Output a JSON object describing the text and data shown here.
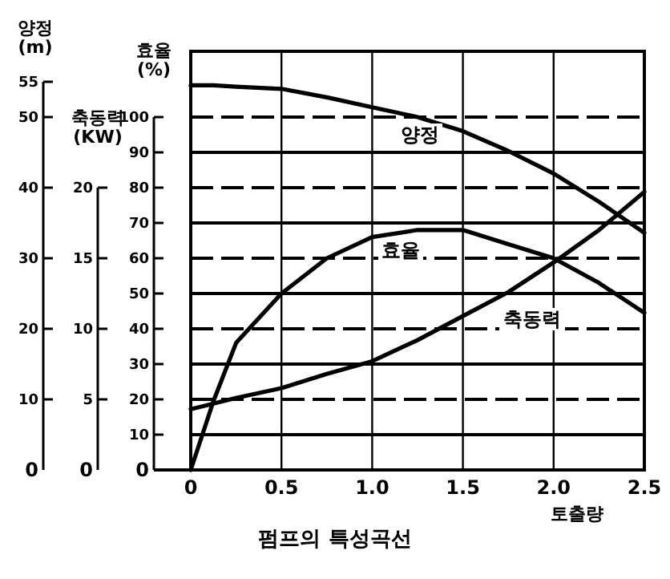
{
  "chart_data": {
    "type": "line",
    "title": "펌프의 특성곡선",
    "xlabel": "토출량",
    "ylabel": "효율\n(%)",
    "y2label": "축동력\n(KW)",
    "y3label": "양정\n(m)",
    "x": [
      0,
      0.125,
      0.25,
      0.5,
      0.75,
      1.0,
      1.25,
      1.5,
      1.75,
      2.0,
      2.25,
      2.5
    ],
    "series": [
      {
        "name": "양정",
        "color": "#000000",
        "axis": "y3",
        "values": [
          54.5,
          54.5,
          54.3,
          54,
          52.8,
          51.4,
          50,
          48,
          45.2,
          42,
          38,
          33.6
        ]
      },
      {
        "name": "효율",
        "color": "#000000",
        "values": [
          0,
          19.5,
          36,
          50,
          60,
          66,
          68,
          68,
          64,
          60,
          53,
          44.5
        ]
      },
      {
        "name": "축동력",
        "color": "#000000",
        "axis": "y2",
        "values": [
          4.3,
          4.7,
          5.1,
          5.8,
          6.8,
          7.7,
          9.2,
          10.9,
          12.6,
          14.7,
          17,
          19.7
        ]
      }
    ],
    "xlim": [
      0,
      2.5
    ],
    "xticks": [
      0,
      0.5,
      {
        "value": 1,
        "label": "1.0"
      },
      1.5,
      {
        "value": 2,
        "label": "2.0"
      },
      2.5
    ],
    "ylim": [
      0,
      100
    ],
    "yticks": [
      0,
      10,
      20,
      30,
      40,
      50,
      60,
      70,
      80,
      90,
      100
    ],
    "y2lim": [
      0,
      20
    ],
    "y2ticks": [
      0,
      5,
      10,
      15,
      20
    ],
    "y3lim": [
      0,
      55
    ],
    "y3ticks": [
      0,
      10,
      20,
      30,
      40,
      50,
      55
    ],
    "grid": true,
    "marker": "none",
    "line_style": "solid"
  }
}
